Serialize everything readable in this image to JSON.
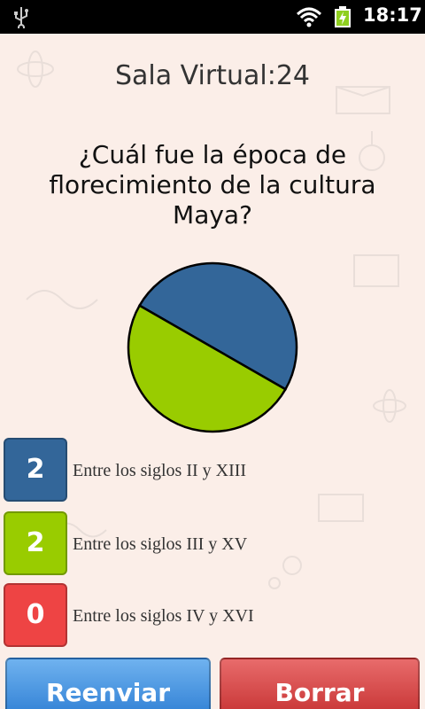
{
  "status_bar": {
    "time": "18:17",
    "icons": [
      "usb-icon",
      "wifi-icon",
      "battery-charging-icon"
    ]
  },
  "screen": {
    "title": "Sala Virtual:24",
    "question": "¿Cuál fue la época de florecimiento de la cultura Maya?"
  },
  "answers": [
    {
      "count": "2",
      "label": "Entre los siglos II y XIII",
      "color": "#336699"
    },
    {
      "count": "2",
      "label": "Entre los siglos III y XV",
      "color": "#99cc00"
    },
    {
      "count": "0",
      "label": "Entre los siglos IV y XVI",
      "color": "#ee4444"
    }
  ],
  "chart_data": {
    "type": "pie",
    "categories": [
      "Entre los siglos II y XIII",
      "Entre los siglos III y XV",
      "Entre los siglos IV y XVI"
    ],
    "values": [
      2,
      2,
      0
    ],
    "colors": [
      "#336699",
      "#99cc00",
      "#ee4444"
    ]
  },
  "buttons": {
    "resend": "Reenviar",
    "clear": "Borrar"
  }
}
